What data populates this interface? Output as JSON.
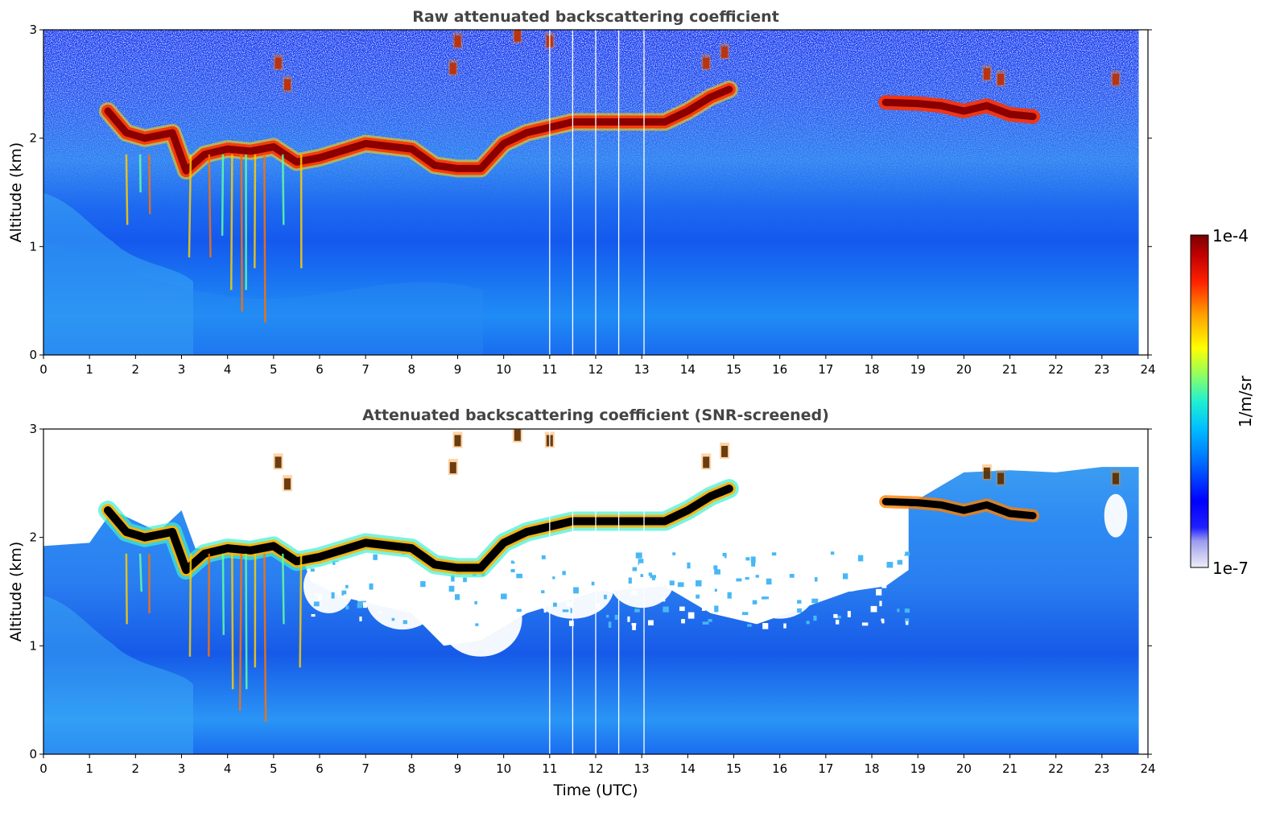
{
  "chart_data": [
    {
      "type": "heatmap",
      "title": "Raw attenuated backscattering coefficient",
      "xlabel": "",
      "ylabel": "Altitude (km)",
      "xlim": [
        0,
        24
      ],
      "ylim": [
        0,
        3
      ],
      "xticks": [
        "0",
        "1",
        "2",
        "3",
        "4",
        "5",
        "6",
        "7",
        "8",
        "9",
        "10",
        "11",
        "12",
        "13",
        "14",
        "15",
        "16",
        "17",
        "18",
        "19",
        "20",
        "21",
        "22",
        "23",
        "24"
      ],
      "yticks": [
        "0",
        "1",
        "2",
        "3"
      ],
      "screened": false,
      "cloud_base_km": [
        [
          1.4,
          2.25
        ],
        [
          1.8,
          2.05
        ],
        [
          2.2,
          2.0
        ],
        [
          2.8,
          2.05
        ],
        [
          3.1,
          1.7
        ],
        [
          3.5,
          1.85
        ],
        [
          4.0,
          1.9
        ],
        [
          4.5,
          1.88
        ],
        [
          5.0,
          1.92
        ],
        [
          5.5,
          1.78
        ],
        [
          6.0,
          1.82
        ],
        [
          7.0,
          1.95
        ],
        [
          8.0,
          1.9
        ],
        [
          8.5,
          1.75
        ],
        [
          9.0,
          1.72
        ],
        [
          9.5,
          1.72
        ],
        [
          10.0,
          1.95
        ],
        [
          10.5,
          2.05
        ],
        [
          11.0,
          2.1
        ],
        [
          11.5,
          2.15
        ],
        [
          12.0,
          2.15
        ],
        [
          12.5,
          2.15
        ],
        [
          13.0,
          2.15
        ],
        [
          13.5,
          2.15
        ],
        [
          14.0,
          2.25
        ],
        [
          14.5,
          2.38
        ],
        [
          14.9,
          2.45
        ]
      ],
      "upper_cloud_base_km": [
        [
          18.3,
          2.33
        ],
        [
          19.0,
          2.32
        ],
        [
          19.5,
          2.3
        ],
        [
          20.0,
          2.25
        ],
        [
          20.5,
          2.3
        ],
        [
          21.0,
          2.22
        ],
        [
          21.5,
          2.2
        ]
      ],
      "data_end_time": 23.8
    },
    {
      "type": "heatmap",
      "title": "Attenuated backscattering coefficient (SNR-screened)",
      "xlabel": "Time (UTC)",
      "ylabel": "Altitude (km)",
      "xlim": [
        0,
        24
      ],
      "ylim": [
        0,
        3
      ],
      "xticks": [
        "0",
        "1",
        "2",
        "3",
        "4",
        "5",
        "6",
        "7",
        "8",
        "9",
        "10",
        "11",
        "12",
        "13",
        "14",
        "15",
        "16",
        "17",
        "18",
        "19",
        "20",
        "21",
        "22",
        "23",
        "24"
      ],
      "yticks": [
        "0",
        "1",
        "2",
        "3"
      ],
      "screened": true,
      "data_end_time": 23.8
    }
  ],
  "colorbar": {
    "label": "1/m/sr",
    "max_label": "1e-4",
    "min_label": "1e-7",
    "colors": [
      "#e8e8f8",
      "#c8c8f0",
      "#a0a0f0",
      "#0000ff",
      "#0050ff",
      "#00a0ff",
      "#00e0f0",
      "#50ffb0",
      "#b0ff50",
      "#ffff00",
      "#ffb000",
      "#ff6000",
      "#ff0000",
      "#c00000",
      "#800000"
    ]
  },
  "gap_times_utc": [
    11.0,
    11.5,
    12.0,
    12.5,
    13.05
  ]
}
